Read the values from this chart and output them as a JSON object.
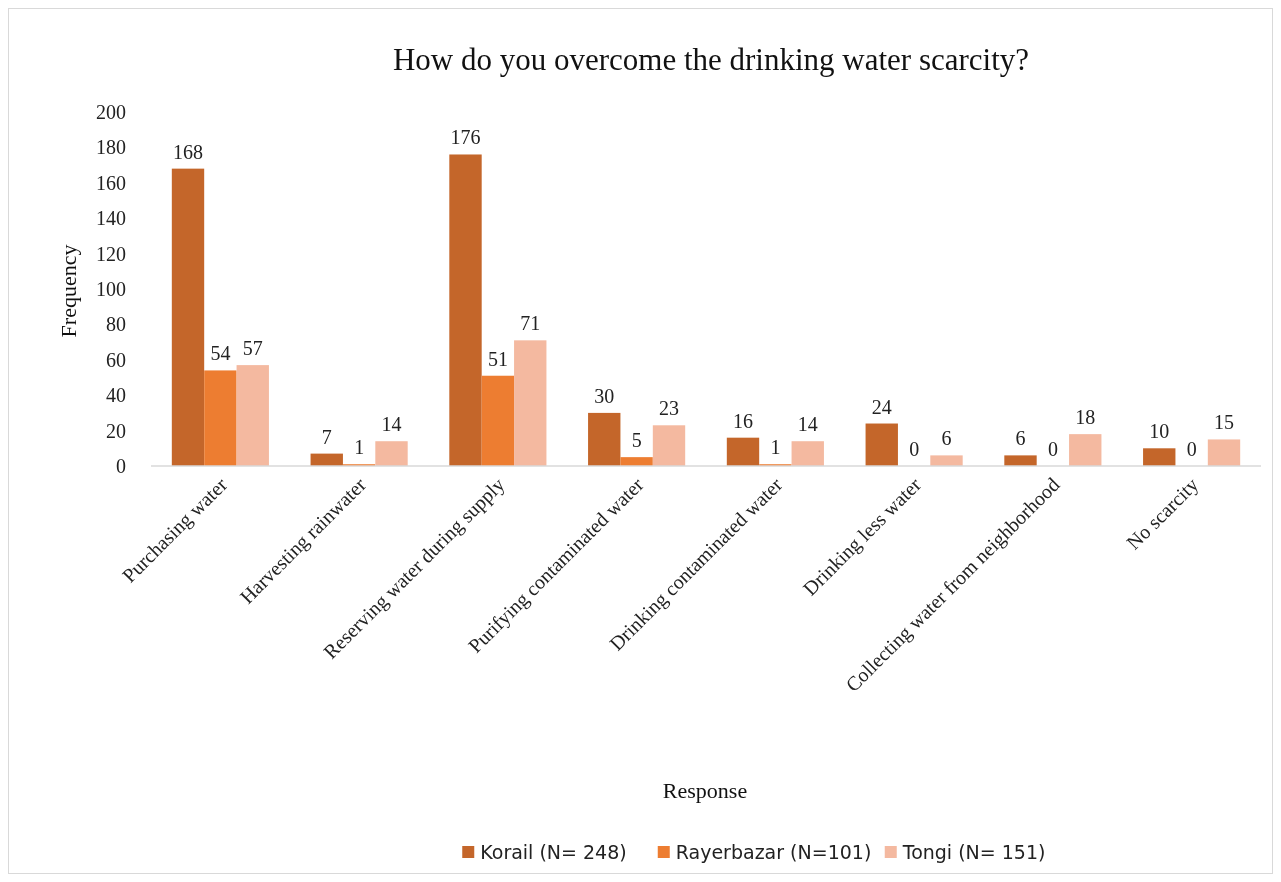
{
  "chart_data": {
    "type": "bar",
    "title": "How do you overcome the drinking water scarcity?",
    "xlabel": "Response",
    "ylabel": "Frequency",
    "categories": [
      "Purchasing water",
      "Harvesting rainwater",
      "Reserving water during supply",
      "Purifying contaminated water",
      "Drinking contaminated water",
      "Drinking less water",
      "Collecting water from neighborhood",
      "No scarcity"
    ],
    "series": [
      {
        "name": "Korail (N= 248)",
        "color": "#c4662a",
        "values": [
          168,
          7,
          176,
          30,
          16,
          24,
          6,
          10
        ]
      },
      {
        "name": "Rayerbazar (N=101)",
        "color": "#ed7d31",
        "values": [
          54,
          1,
          51,
          5,
          1,
          0,
          0,
          0
        ]
      },
      {
        "name": "Tongi (N= 151)",
        "color": "#f4b9a0",
        "values": [
          57,
          14,
          71,
          23,
          14,
          6,
          18,
          15
        ]
      }
    ],
    "ylim": [
      0,
      200
    ],
    "yticks": [
      0,
      20,
      40,
      60,
      80,
      100,
      120,
      140,
      160,
      180,
      200
    ],
    "grid": false,
    "data_labels": true,
    "legend": "bottom"
  }
}
